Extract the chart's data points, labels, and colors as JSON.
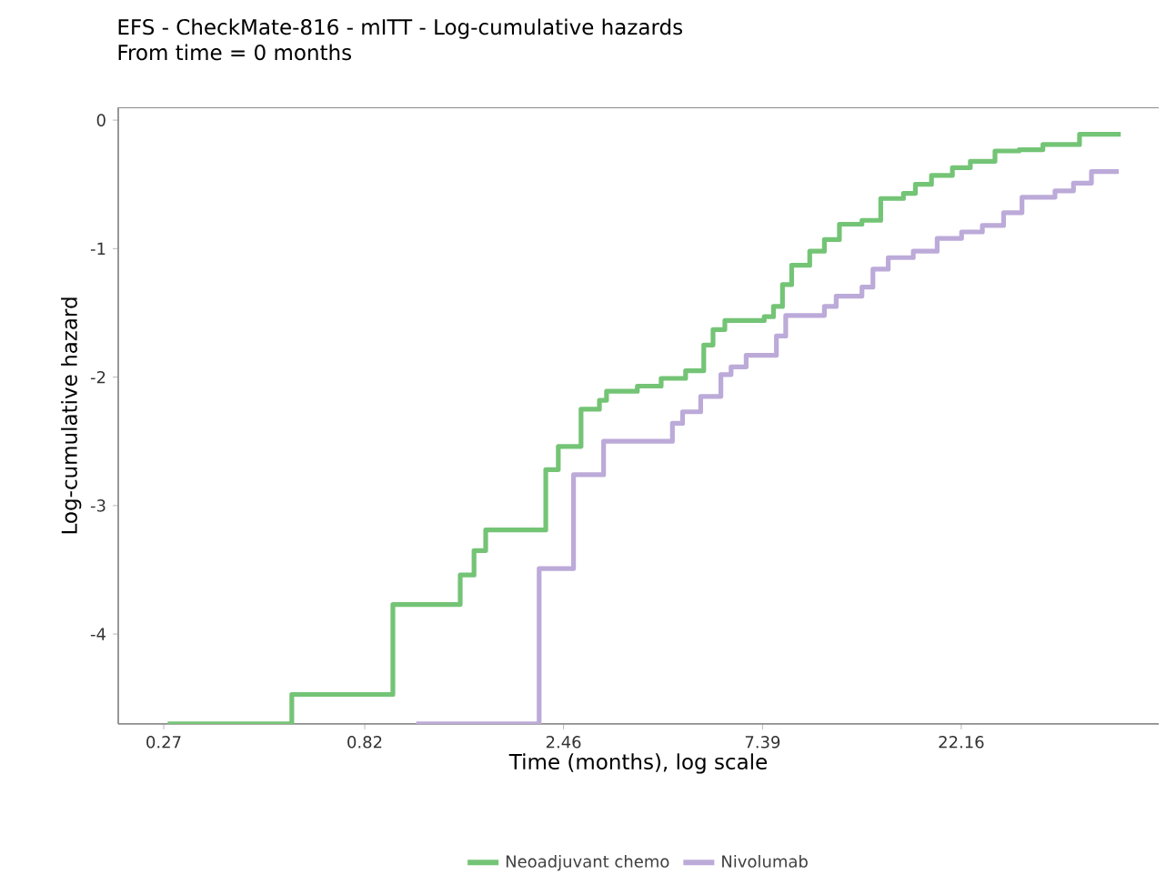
{
  "chart_data": {
    "type": "step",
    "title": "EFS - CheckMate-816 - mITT - Log-cumulative hazards",
    "subtitle": "From time = 0 months",
    "xlabel": "Time (months), log scale",
    "ylabel": "Log-cumulative hazard",
    "log": "x",
    "xlim": [
      0.21,
      66
    ],
    "xticks": [
      0.27,
      0.82,
      2.46,
      7.39,
      22.16
    ],
    "ylim": [
      -4.7,
      0.1
    ],
    "yticks": [
      -4,
      -3,
      -2,
      -1,
      0
    ],
    "grid": false,
    "legend": "bottom",
    "line_style": "solid",
    "marker": "none",
    "series": [
      {
        "name": "Neoadjuvant chemo",
        "color": "#74c476",
        "x": [
          0.276,
          0.548,
          0.958,
          1.39,
          1.5,
          1.6,
          2.23,
          2.39,
          2.71,
          3.0,
          3.12,
          3.7,
          4.22,
          4.83,
          5.34,
          5.62,
          6.0,
          7.46,
          7.85,
          8.25,
          8.68,
          9.59,
          10.4,
          11.3,
          12.8,
          14.2,
          16.1,
          17.2,
          18.8,
          21.1,
          23.3,
          26.7,
          30.5,
          34.8,
          42.6,
          53.5
        ],
        "values": [
          -4.7,
          -4.47,
          -3.77,
          -3.54,
          -3.35,
          -3.19,
          -2.72,
          -2.54,
          -2.25,
          -2.18,
          -2.11,
          -2.07,
          -2.01,
          -1.95,
          -1.75,
          -1.63,
          -1.56,
          -1.53,
          -1.45,
          -1.28,
          -1.13,
          -1.02,
          -0.93,
          -0.81,
          -0.78,
          -0.61,
          -0.57,
          -0.5,
          -0.43,
          -0.37,
          -0.32,
          -0.24,
          -0.23,
          -0.19,
          -0.11,
          -0.11
        ]
      },
      {
        "name": "Nivolumab",
        "color": "#bcaad9",
        "x": [
          1.09,
          2.15,
          2.6,
          3.07,
          4.49,
          4.75,
          5.25,
          5.87,
          6.21,
          6.75,
          7.98,
          8.4,
          10.4,
          11.1,
          12.8,
          13.6,
          14.8,
          17.0,
          19.4,
          22.2,
          24.9,
          28.0,
          31.0,
          37.2,
          41.2,
          45.5,
          52.9
        ],
        "values": [
          -4.7,
          -3.49,
          -2.76,
          -2.5,
          -2.36,
          -2.27,
          -2.15,
          -1.98,
          -1.92,
          -1.83,
          -1.68,
          -1.52,
          -1.45,
          -1.37,
          -1.3,
          -1.16,
          -1.07,
          -1.02,
          -0.92,
          -0.87,
          -0.82,
          -0.72,
          -0.6,
          -0.55,
          -0.49,
          -0.4,
          -0.4
        ]
      }
    ]
  }
}
